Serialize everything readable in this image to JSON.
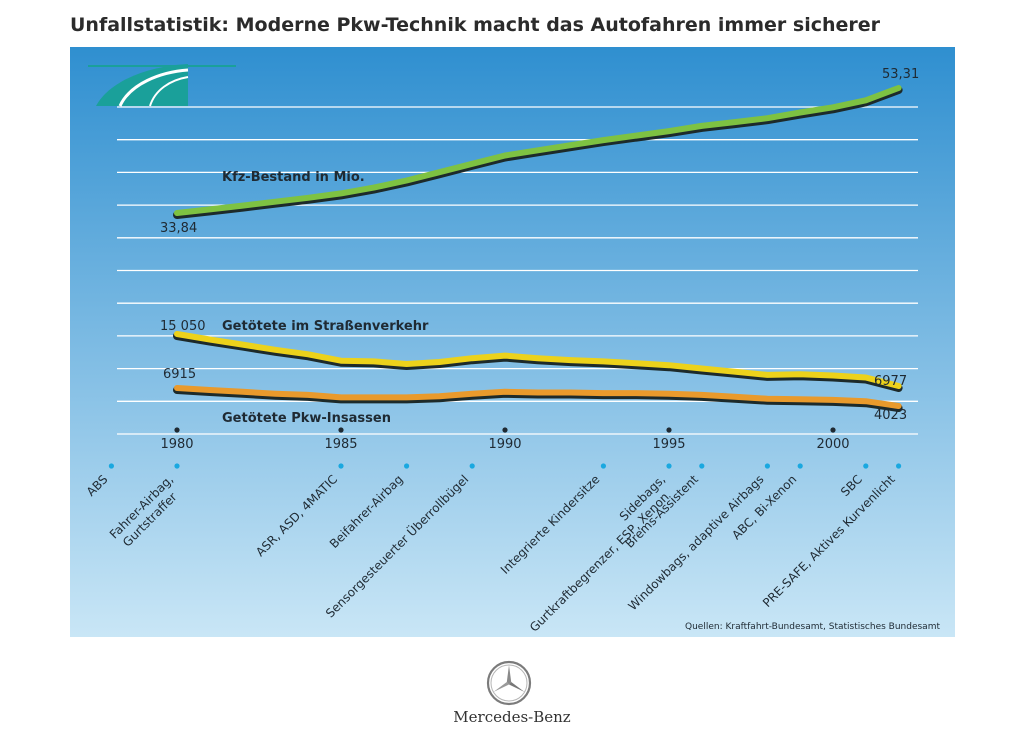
{
  "title": "Unfallstatistik: Moderne Pkw-Technik macht das Autofahren immer sicherer",
  "brand": {
    "name": "Mercedes-Benz",
    "logo_icon": "mercedes-star-icon",
    "corner_icon": "road-icon"
  },
  "colors": {
    "panel_top": "#2f8fd0",
    "panel_bottom": "#c9e6f6",
    "kfz": "#7ec242",
    "getoetete": "#ecd21b",
    "insassen": "#e99a2c",
    "road": "#1aa09a"
  },
  "source": "Quellen: Kraftfahrt-Bundesamt, Statistisches Bundesamt",
  "chart_data": {
    "type": "line",
    "x": [
      1980,
      1981,
      1982,
      1983,
      1984,
      1985,
      1986,
      1987,
      1988,
      1989,
      1990,
      1991,
      1992,
      1993,
      1994,
      1995,
      1996,
      1997,
      1998,
      1999,
      2000,
      2001,
      2002
    ],
    "series": [
      {
        "name": "Kfz-Bestand in Mio.",
        "values": [
          33.84,
          34.4,
          35.0,
          35.6,
          36.2,
          36.9,
          37.8,
          38.9,
          40.2,
          41.5,
          42.8,
          43.6,
          44.4,
          45.2,
          45.9,
          46.6,
          47.4,
          48.0,
          48.6,
          49.5,
          50.3,
          51.4,
          53.31
        ]
      },
      {
        "name": "Getötete im Straßenverkehr",
        "values": [
          15050,
          14200,
          13400,
          12600,
          11900,
          10900,
          10800,
          10400,
          10700,
          11300,
          11700,
          11300,
          11000,
          10800,
          10500,
          10200,
          9700,
          9200,
          8700,
          8800,
          8600,
          8300,
          6977
        ]
      },
      {
        "name": "Getötete Pkw-Insassen",
        "values": [
          6915,
          6600,
          6300,
          6000,
          5800,
          5400,
          5400,
          5400,
          5600,
          6000,
          6300,
          6200,
          6200,
          6100,
          6100,
          6000,
          5800,
          5500,
          5200,
          5100,
          5000,
          4800,
          4023
        ]
      }
    ],
    "value_labels": {
      "kfz_start": "33,84",
      "kfz_end": "53,31",
      "getoetete_start": "15 050",
      "getoetete_end": "6977",
      "insassen_start": "6915",
      "insassen_end": "4023"
    },
    "x_ticks": [
      "1980",
      "1985",
      "1990",
      "1995",
      "2000"
    ],
    "technologies": [
      {
        "label": "ABS",
        "year": 1978
      },
      {
        "label": "Fahrer-Airbag,",
        "label2": "Gurtstraffer",
        "year": 1980
      },
      {
        "label": "ASR, ASD, 4MATIC",
        "year": 1985
      },
      {
        "label": "Beifahrer-Airbag",
        "year": 1987
      },
      {
        "label": "Sensorgesteuerter Überrollbügel",
        "year": 1989
      },
      {
        "label": "Integrierte Kindersitze",
        "year": 1993
      },
      {
        "label": "Sidebags,",
        "label2": "Gurtkraftbegrenzer, ESP, Xenon",
        "year": 1995
      },
      {
        "label": "Brems-Assistent",
        "year": 1996
      },
      {
        "label": "Windowbags, adaptive Airbags",
        "year": 1998
      },
      {
        "label": "ABC, Bi-Xenon",
        "year": 1999
      },
      {
        "label": "SBC",
        "year": 2001
      },
      {
        "label": "PRE-SAFE, Aktives Kurvenlicht",
        "year": 2002
      }
    ]
  }
}
